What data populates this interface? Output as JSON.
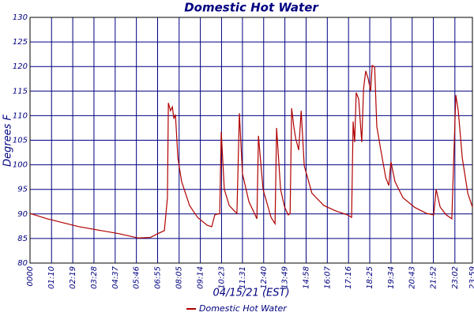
{
  "chart_data": {
    "type": "line",
    "title": "Domestic Hot Water",
    "xlabel": "04/15/21 (EST)",
    "ylabel": "Degrees F",
    "xlim": [
      0,
      1439
    ],
    "ylim": [
      80,
      130
    ],
    "xticks": [
      {
        "value": 0,
        "label": "0000"
      },
      {
        "value": 70,
        "label": "01:10"
      },
      {
        "value": 139,
        "label": "02:19"
      },
      {
        "value": 208,
        "label": "03:28"
      },
      {
        "value": 277,
        "label": "04:37"
      },
      {
        "value": 346,
        "label": "05:46"
      },
      {
        "value": 415,
        "label": "06:55"
      },
      {
        "value": 485,
        "label": "08:05"
      },
      {
        "value": 554,
        "label": "09:14"
      },
      {
        "value": 623,
        "label": "10:23"
      },
      {
        "value": 691,
        "label": "11:31"
      },
      {
        "value": 760,
        "label": "12:40"
      },
      {
        "value": 829,
        "label": "13:49"
      },
      {
        "value": 898,
        "label": "14:58"
      },
      {
        "value": 967,
        "label": "16:07"
      },
      {
        "value": 1036,
        "label": "17:16"
      },
      {
        "value": 1105,
        "label": "18:25"
      },
      {
        "value": 1174,
        "label": "19:34"
      },
      {
        "value": 1243,
        "label": "20:43"
      },
      {
        "value": 1312,
        "label": "21:52"
      },
      {
        "value": 1382,
        "label": "23:02"
      },
      {
        "value": 1439,
        "label": "23:59"
      }
    ],
    "yticks": [
      80,
      85,
      90,
      95,
      100,
      105,
      110,
      115,
      120,
      125,
      130
    ],
    "grid": true,
    "x": [
      0,
      57,
      159,
      288,
      352,
      391,
      416,
      437,
      447,
      450,
      457,
      463,
      468,
      473,
      481,
      493,
      519,
      545,
      576,
      591,
      601,
      617,
      622,
      632,
      648,
      668,
      673,
      681,
      691,
      712,
      730,
      738,
      743,
      758,
      784,
      797,
      802,
      815,
      828,
      840,
      846,
      851,
      858,
      864,
      874,
      882,
      892,
      917,
      956,
      995,
      1033,
      1046,
      1051,
      1056,
      1061,
      1069,
      1079,
      1085,
      1092,
      1100,
      1108,
      1113,
      1121,
      1128,
      1141,
      1157,
      1167,
      1174,
      1187,
      1213,
      1252,
      1290,
      1313,
      1321,
      1334,
      1354,
      1372,
      1380,
      1385,
      1393,
      1406,
      1424,
      1439
    ],
    "series": [
      {
        "name": "Domestic Hot Water",
        "color": "#b00000",
        "values": [
          90.1,
          89,
          87.4,
          86,
          85.1,
          85.2,
          86,
          86.6,
          93.3,
          112.6,
          111,
          111.8,
          109.4,
          110.2,
          101.4,
          96.6,
          91.7,
          89.3,
          87.7,
          87.4,
          89.8,
          90.1,
          106.7,
          95,
          91.7,
          90.4,
          90.1,
          110.5,
          98.2,
          92.5,
          90.1,
          89,
          105.9,
          95,
          89.3,
          88,
          107.5,
          95,
          91.4,
          89.8,
          90.1,
          111.5,
          107.8,
          105.4,
          103,
          111,
          99.8,
          94.2,
          91.7,
          90.6,
          89.8,
          89.3,
          108.8,
          104.6,
          114.7,
          113.4,
          104.6,
          115.5,
          119.1,
          117.5,
          115,
          120.2,
          119.9,
          107.8,
          103,
          97.4,
          95.8,
          100.6,
          96.6,
          93.3,
          91.3,
          90.1,
          89.8,
          95,
          91.4,
          89.8,
          89,
          104.6,
          114.2,
          111,
          101.4,
          94.2,
          91.4
        ]
      }
    ]
  }
}
